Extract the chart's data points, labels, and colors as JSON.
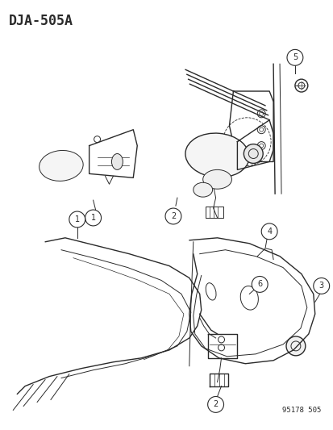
{
  "title": "DJA-505A",
  "footer": "95178 505",
  "background_color": "#ffffff",
  "line_color": "#2a2a2a",
  "figsize": [
    4.14,
    5.33
  ],
  "dpi": 100
}
